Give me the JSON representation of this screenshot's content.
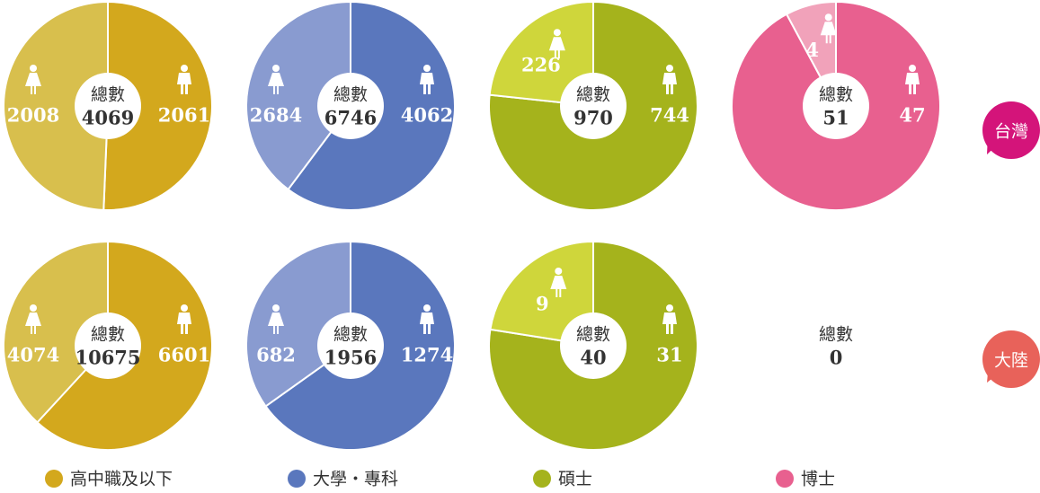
{
  "rows": [
    "台灣",
    "大陸"
  ],
  "legend": [
    {
      "name": "高中職及以下",
      "color": "#d3a81d"
    },
    {
      "name": "大學・專科",
      "color": "#5a77bd"
    },
    {
      "name": "碩士",
      "color": "#a5b31c"
    },
    {
      "name": "博士",
      "color": "#e8608f"
    }
  ],
  "chart_data": [
    {
      "type": "pie",
      "title": "總數",
      "total": 4069,
      "values": [
        2061,
        2008
      ],
      "colors": [
        "#d3a81d",
        "#d8bf4d"
      ]
    },
    {
      "type": "pie",
      "title": "總數",
      "total": 6746,
      "values": [
        4062,
        2684
      ],
      "colors": [
        "#5a77bd",
        "#899bd0"
      ]
    },
    {
      "type": "pie",
      "title": "總數",
      "total": 970,
      "values": [
        744,
        226
      ],
      "colors": [
        "#a5b31c",
        "#cfd63b"
      ]
    },
    {
      "type": "pie",
      "title": "總數",
      "total": 51,
      "values": [
        47,
        4
      ],
      "colors": [
        "#e8608f",
        "#f1a2ba"
      ]
    },
    {
      "type": "pie",
      "title": "總數",
      "total": 10675,
      "values": [
        6601,
        4074
      ],
      "colors": [
        "#d3a81d",
        "#d8bf4d"
      ]
    },
    {
      "type": "pie",
      "title": "總數",
      "total": 1956,
      "values": [
        1274,
        682
      ],
      "colors": [
        "#5a77bd",
        "#899bd0"
      ]
    },
    {
      "type": "pie",
      "title": "總數",
      "total": 40,
      "values": [
        31,
        9
      ],
      "colors": [
        "#a5b31c",
        "#cfd63b"
      ]
    },
    {
      "type": "pie",
      "title": "總數",
      "total": 0,
      "values": [],
      "colors": []
    }
  ]
}
